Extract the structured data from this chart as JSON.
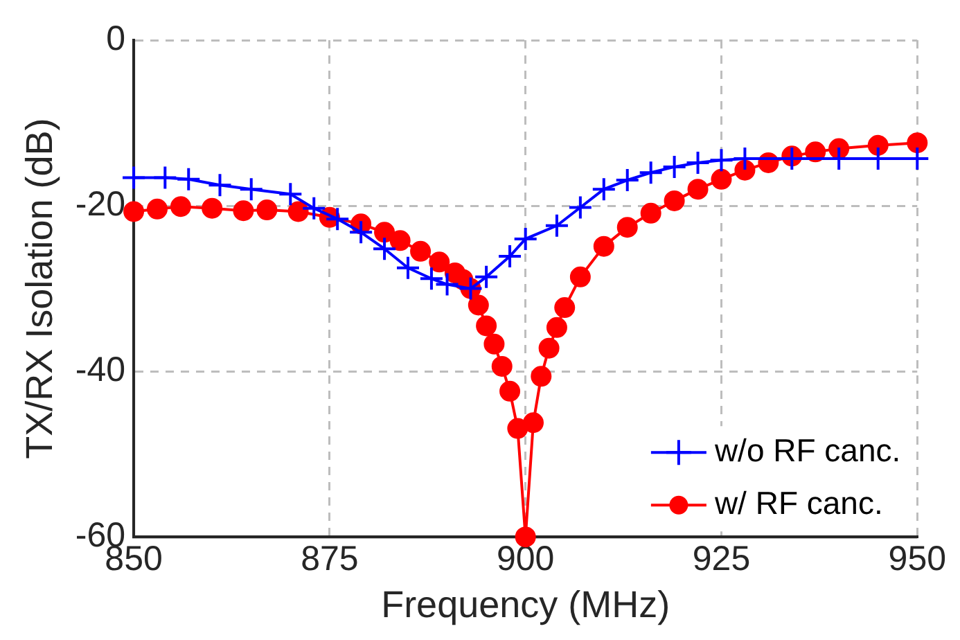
{
  "chart_data": {
    "type": "line",
    "xlabel": "Frequency (MHz)",
    "ylabel": "TX/RX Isolation (dB)",
    "xlim": [
      850,
      950
    ],
    "xticks": [
      850,
      875,
      900,
      925,
      950
    ],
    "ylim": [
      -60,
      0
    ],
    "yticks": [
      -60,
      -40,
      -20,
      0
    ],
    "grid": true,
    "legend": "bottom right",
    "line_style": "solid",
    "series": [
      {
        "name": "w/o RF canc.",
        "color": "#0000ff",
        "marker": "cross",
        "x": [
          850,
          854,
          857,
          861,
          865,
          870,
          873,
          876,
          879,
          882,
          885,
          888,
          890,
          893,
          895,
          898,
          900,
          904,
          907,
          910,
          913,
          916,
          919,
          922,
          925,
          928,
          934,
          940,
          945,
          950
        ],
        "values": [
          -16.6,
          -16.6,
          -16.8,
          -17.5,
          -18,
          -18.6,
          -20.3,
          -21.6,
          -23.2,
          -25.2,
          -27.5,
          -28.8,
          -29.5,
          -30,
          -28.6,
          -26.1,
          -24,
          -22.4,
          -20.2,
          -18,
          -16.9,
          -16,
          -15.3,
          -14.8,
          -14.5,
          -14.3,
          -14.3,
          -14.3,
          -14.3,
          -14.3
        ]
      },
      {
        "name": "w/ RF canc.",
        "color": "#ff0000",
        "marker": "circle",
        "x": [
          850,
          853,
          856,
          860,
          864,
          867,
          871,
          875,
          879,
          882,
          884,
          886.6,
          889,
          891,
          892,
          893,
          894,
          895,
          896,
          897,
          898,
          899,
          900,
          901,
          902,
          903,
          904,
          905,
          907,
          910,
          913,
          916,
          919,
          922,
          925,
          928,
          931,
          934,
          937,
          940,
          945,
          950
        ],
        "values": [
          -20.7,
          -20.4,
          -20.1,
          -20.3,
          -20.6,
          -20.5,
          -20.7,
          -21.4,
          -22.2,
          -23.2,
          -24.2,
          -25.5,
          -26.8,
          -28.1,
          -28.9,
          -30,
          -32,
          -34.5,
          -36.7,
          -39.4,
          -42.4,
          -46.9,
          -60,
          -46.2,
          -40.6,
          -37.2,
          -34.7,
          -32.3,
          -28.6,
          -24.9,
          -22.6,
          -20.9,
          -19.4,
          -18,
          -16.8,
          -15.7,
          -14.8,
          -14,
          -13.5,
          -13.1,
          -12.7,
          -12.4
        ]
      }
    ]
  }
}
